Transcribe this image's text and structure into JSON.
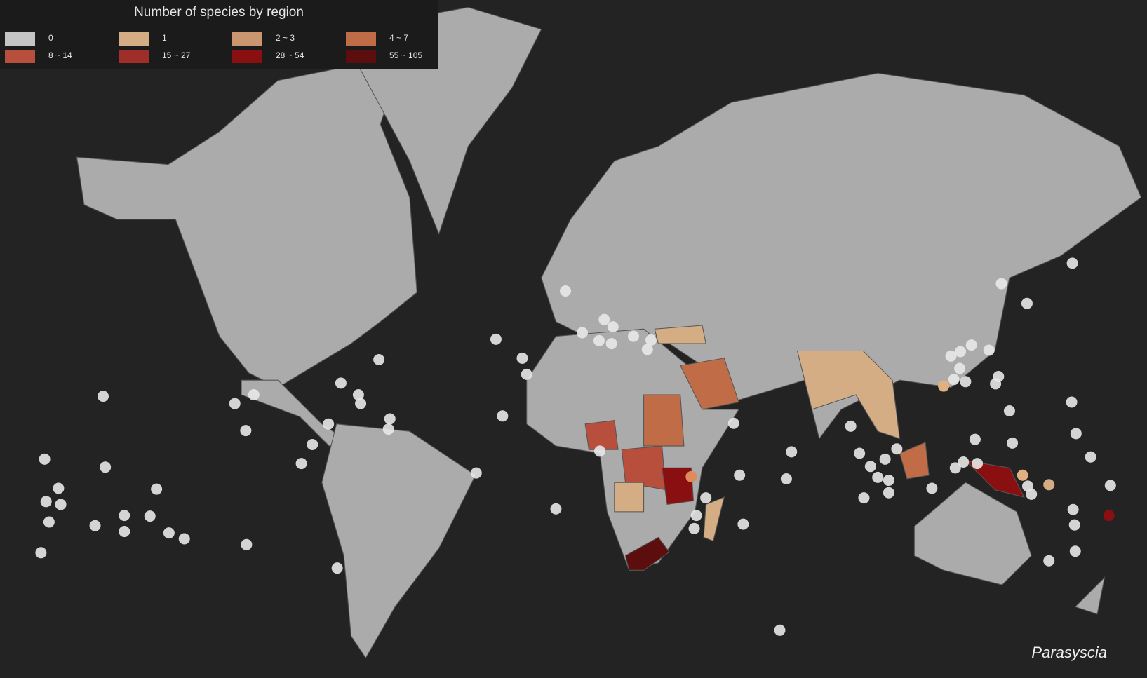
{
  "legend": {
    "title": "Number of species by region",
    "items": [
      {
        "label": "0",
        "color": "#c4c4c4"
      },
      {
        "label": "1",
        "color": "#d4ad84"
      },
      {
        "label": "2 ~ 3",
        "color": "#c99670"
      },
      {
        "label": "4 ~ 7",
        "color": "#c06c46"
      },
      {
        "label": "8 ~ 14",
        "color": "#b84e3c"
      },
      {
        "label": "15 ~ 27",
        "color": "#a02e28"
      },
      {
        "label": "28 ~ 54",
        "color": "#8a0f10"
      },
      {
        "label": "55 ~ 105",
        "color": "#5c0e0e"
      }
    ]
  },
  "caption": "Parasyscia"
}
